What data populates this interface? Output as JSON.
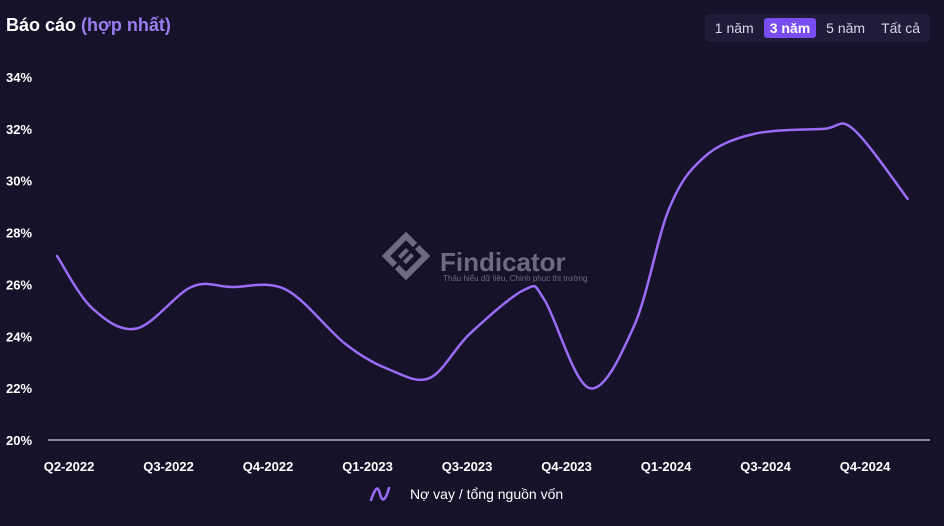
{
  "header": {
    "title_main": "Báo cáo",
    "title_accent": "(hợp nhất)"
  },
  "range_options": [
    "1 năm",
    "3 năm",
    "5 năm",
    "Tất cả"
  ],
  "range_active_index": 1,
  "watermark": {
    "name": "Findicator",
    "tagline": "Thấu hiểu dữ liệu, Chinh phục thị trường"
  },
  "colors": {
    "background": "#15122a",
    "line": "#9b6cf6",
    "accent": "#7a4df0"
  },
  "chart_data": {
    "type": "line",
    "x_tick_labels": [
      "Q2-2022",
      "Q3-2022",
      "Q4-2022",
      "Q1-2023",
      "Q3-2023",
      "Q4-2023",
      "Q1-2024",
      "Q3-2024",
      "Q4-2024"
    ],
    "y_tick_labels": [
      "34%",
      "32%",
      "30%",
      "28%",
      "26%",
      "24%",
      "22%",
      "20%"
    ],
    "ylim": [
      20,
      34
    ],
    "grid": false,
    "legend_position": "bottom",
    "series": [
      {
        "name": "Nợ vay / tổng nguồn vốn",
        "x": [
          0,
          0.35,
          0.8,
          1.35,
          1.75,
          2.3,
          2.9,
          3.35,
          3.75,
          4.15,
          4.7,
          4.9,
          5.35,
          5.8,
          6.15,
          6.5,
          7.0,
          7.7,
          8.0,
          8.55
        ],
        "values": [
          27.1,
          25.1,
          24.3,
          25.9,
          25.9,
          25.8,
          23.7,
          22.7,
          22.4,
          24.1,
          25.8,
          25.4,
          22.0,
          24.4,
          28.9,
          30.9,
          31.8,
          32.0,
          32.0,
          29.3
        ]
      }
    ]
  }
}
